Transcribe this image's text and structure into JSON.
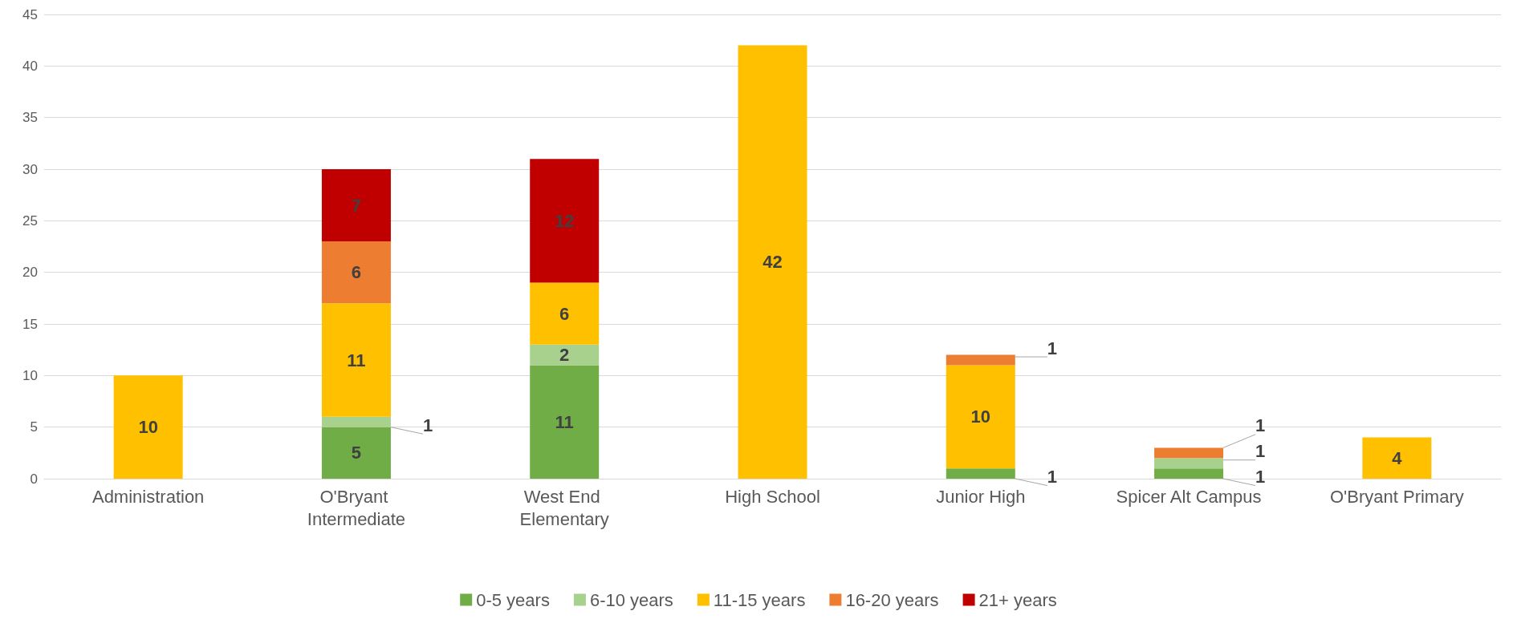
{
  "chart_data": {
    "type": "bar",
    "stacked": true,
    "categories": [
      "Administration",
      "O'Bryant Intermediate",
      "West End Elementary",
      "High School",
      "Junior High",
      "Spicer Alt Campus",
      "O'Bryant Primary"
    ],
    "series": [
      {
        "name": "0-5 years",
        "color": "#70ad47",
        "values": [
          null,
          5,
          11,
          null,
          1,
          1,
          null
        ]
      },
      {
        "name": "6-10 years",
        "color": "#a9d18e",
        "values": [
          null,
          1,
          2,
          null,
          null,
          1,
          null
        ]
      },
      {
        "name": "11-15 years",
        "color": "#ffc000",
        "values": [
          10,
          11,
          6,
          42,
          10,
          null,
          4
        ]
      },
      {
        "name": "16-20 years",
        "color": "#ed7d31",
        "values": [
          null,
          6,
          null,
          null,
          1,
          1,
          null
        ]
      },
      {
        "name": "21+ years",
        "color": "#c00000",
        "values": [
          null,
          7,
          12,
          null,
          null,
          null,
          null
        ]
      }
    ],
    "ylim": [
      0,
      45
    ],
    "yticks": [
      0,
      5,
      10,
      15,
      20,
      25,
      30,
      35,
      40,
      45
    ],
    "grid": "y",
    "legend": "bottom",
    "data_labels": true
  }
}
